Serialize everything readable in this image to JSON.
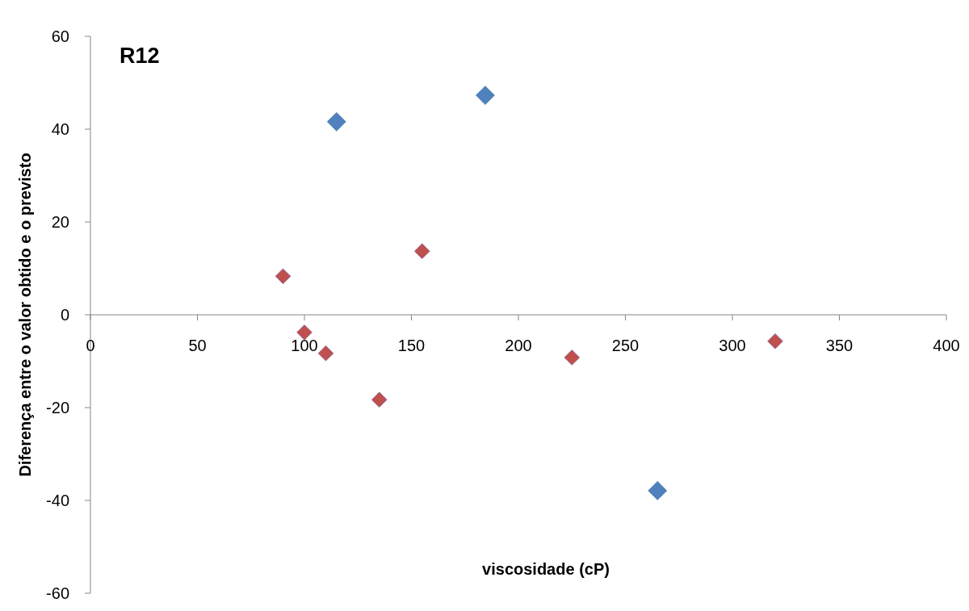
{
  "chart_data": {
    "type": "scatter",
    "title": "R12",
    "xlabel": "viscosidade (cP)",
    "ylabel": "Diferença entre o valor obtido e o previsto",
    "xlim": [
      0,
      400
    ],
    "xticks": [
      0,
      50,
      100,
      150,
      200,
      250,
      300,
      350,
      400
    ],
    "ylim": [
      -60,
      60
    ],
    "yticks": [
      -60,
      -40,
      -20,
      0,
      20,
      40,
      60
    ],
    "grid": false,
    "marker": "diamond",
    "series": [
      {
        "color": "#4f81bd",
        "x": [
          115,
          184.5,
          265
        ],
        "values": [
          41.6,
          47.3,
          -37.9
        ]
      },
      {
        "color": "#c0504d",
        "x": [
          90,
          100,
          110,
          135,
          155,
          225,
          320
        ],
        "values": [
          8.3,
          -3.8,
          -8.3,
          -18.3,
          13.7,
          -9.2,
          -5.7
        ]
      }
    ]
  }
}
